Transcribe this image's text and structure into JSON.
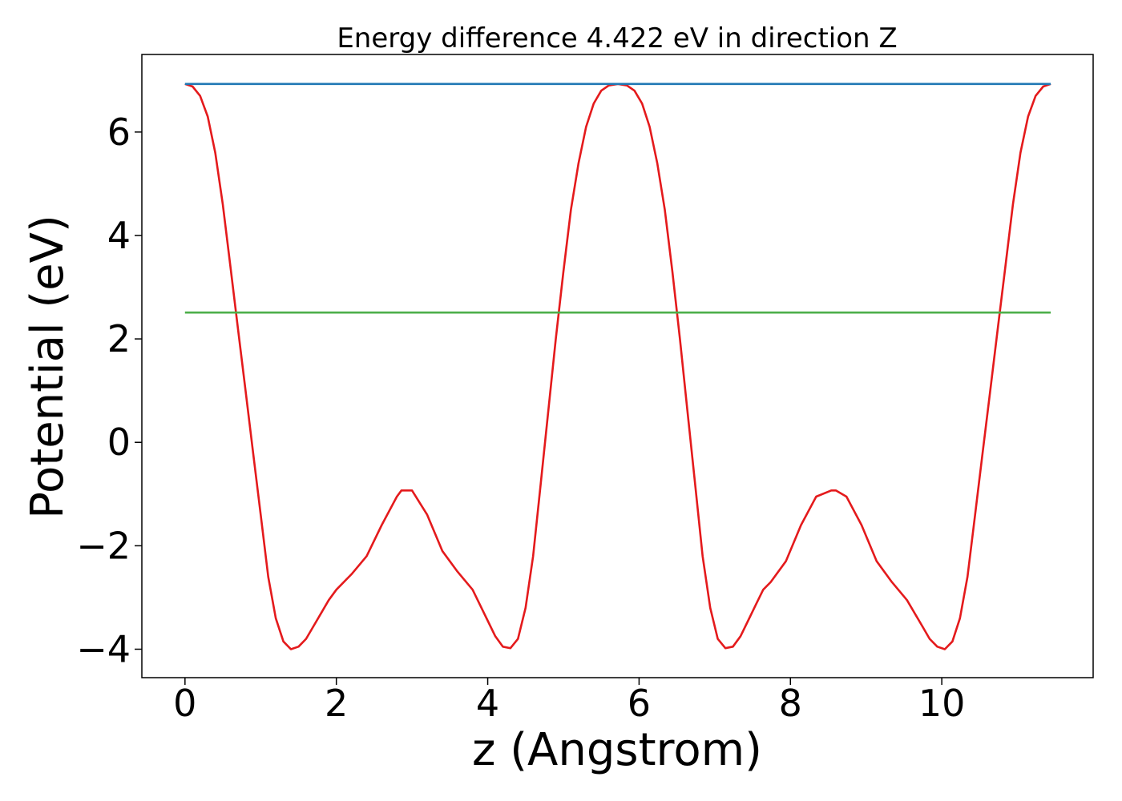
{
  "chart_data": {
    "type": "line",
    "title": "Energy difference 4.422 eV in direction Z",
    "xlabel": "z (Angstrom)",
    "ylabel": "Potential (eV)",
    "xlim": [
      -0.57,
      12.0
    ],
    "ylim": [
      -4.55,
      7.5
    ],
    "grid": false,
    "x_ticks": [
      0,
      2,
      4,
      6,
      8,
      10
    ],
    "y_ticks": [
      -4,
      -2,
      0,
      2,
      4,
      6
    ],
    "x_tick_labels": [
      "0",
      "2",
      "4",
      "6",
      "8",
      "10"
    ],
    "y_tick_labels": [
      "−4",
      "−2",
      "0",
      "2",
      "4",
      "6"
    ],
    "series": [
      {
        "color": "#e41a1c",
        "x": [
          0,
          0.1,
          0.2,
          0.3,
          0.4,
          0.5,
          0.6,
          0.7,
          0.8,
          0.9,
          1.0,
          1.1,
          1.2,
          1.3,
          1.4,
          1.5,
          1.6,
          1.7,
          1.8,
          1.9,
          2.0,
          2.2,
          2.4,
          2.6,
          2.8,
          2.86,
          3.0,
          3.2,
          3.4,
          3.6,
          3.8,
          4.0,
          4.1,
          4.2,
          4.3,
          4.4,
          4.5,
          4.6,
          4.7,
          4.8,
          4.9,
          5.0,
          5.1,
          5.2,
          5.3,
          5.4,
          5.5,
          5.6,
          5.72,
          5.84,
          5.94,
          6.04,
          6.14,
          6.24,
          6.34,
          6.44,
          6.54,
          6.64,
          6.74,
          6.84,
          6.94,
          7.04,
          7.14,
          7.24,
          7.34,
          7.44,
          7.54,
          7.64,
          7.74,
          7.94,
          8.14,
          8.34,
          8.54,
          8.6,
          8.74,
          8.94,
          9.14,
          9.34,
          9.54,
          9.74,
          9.84,
          9.94,
          10.04,
          10.14,
          10.24,
          10.34,
          10.44,
          10.54,
          10.64,
          10.74,
          10.84,
          10.94,
          11.04,
          11.14,
          11.24,
          11.34,
          11.44
        ],
        "y": [
          6.93,
          6.88,
          6.7,
          6.3,
          5.6,
          4.6,
          3.4,
          2.2,
          1.0,
          -0.2,
          -1.4,
          -2.6,
          -3.4,
          -3.85,
          -4.0,
          -3.95,
          -3.8,
          -3.55,
          -3.3,
          -3.05,
          -2.85,
          -2.55,
          -2.2,
          -1.6,
          -1.05,
          -0.93,
          -0.93,
          -1.4,
          -2.1,
          -2.5,
          -2.85,
          -3.45,
          -3.75,
          -3.95,
          -3.98,
          -3.8,
          -3.2,
          -2.2,
          -0.8,
          0.6,
          2.0,
          3.3,
          4.5,
          5.4,
          6.1,
          6.55,
          6.8,
          6.9,
          6.93,
          6.9,
          6.8,
          6.55,
          6.1,
          5.4,
          4.5,
          3.3,
          2.0,
          0.6,
          -0.8,
          -2.2,
          -3.2,
          -3.8,
          -3.98,
          -3.95,
          -3.75,
          -3.45,
          -3.15,
          -2.85,
          -2.7,
          -2.3,
          -1.6,
          -1.05,
          -0.93,
          -0.93,
          -1.05,
          -1.6,
          -2.3,
          -2.7,
          -3.05,
          -3.55,
          -3.8,
          -3.95,
          -4.0,
          -3.85,
          -3.4,
          -2.6,
          -1.4,
          -0.2,
          1.0,
          2.2,
          3.4,
          4.6,
          5.6,
          6.3,
          6.7,
          6.88,
          6.93
        ]
      },
      {
        "color": "#1f77b4",
        "x": [
          0,
          11.44
        ],
        "y": [
          6.93,
          6.93
        ]
      },
      {
        "color": "#4daf4a",
        "x": [
          0,
          11.44
        ],
        "y": [
          2.51,
          2.51
        ]
      }
    ]
  }
}
